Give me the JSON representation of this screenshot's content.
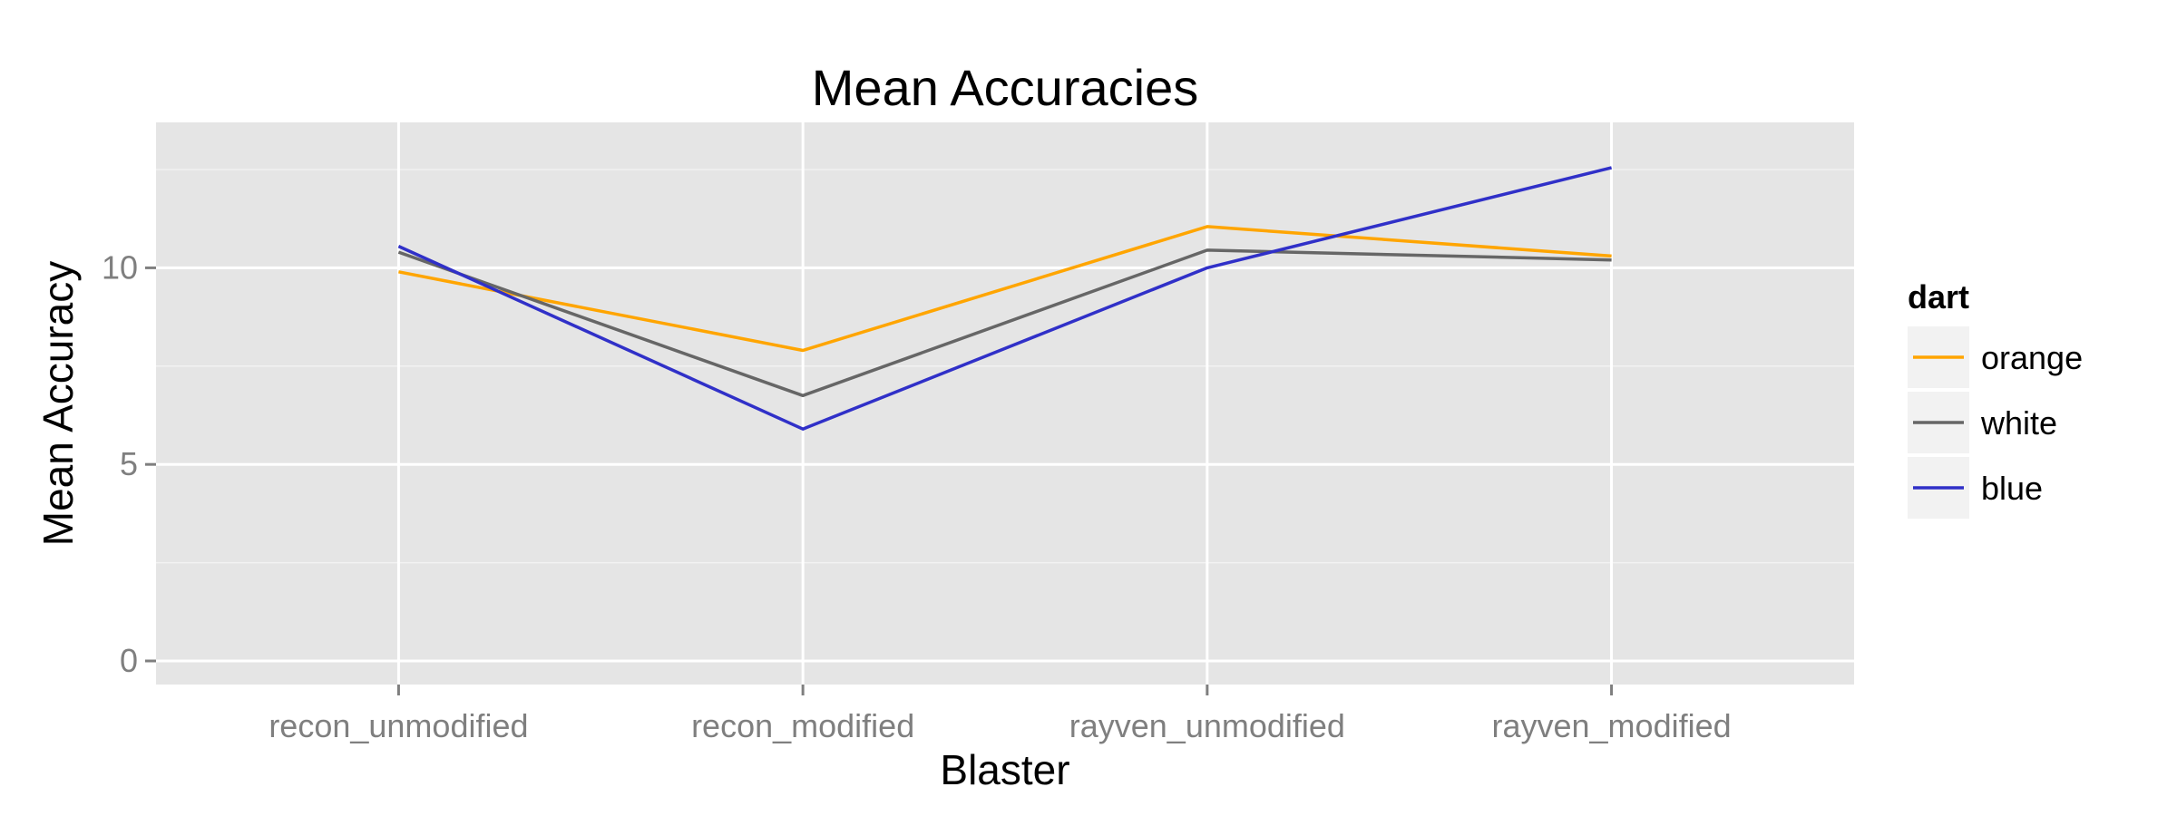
{
  "chart_data": {
    "type": "line",
    "title": "Mean Accuracies",
    "xlabel": "Blaster",
    "ylabel": "Mean Accuracy",
    "categories": [
      "recon_unmodified",
      "recon_modified",
      "rayven_unmodified",
      "rayven_modified"
    ],
    "ylim": [
      -0.6,
      13.7
    ],
    "yticks": [
      0,
      5,
      10
    ],
    "grid": true,
    "legend": {
      "title": "dart",
      "position": "right"
    },
    "series": [
      {
        "name": "orange",
        "color": "#ffa500",
        "values": [
          9.9,
          7.9,
          11.05,
          10.3
        ]
      },
      {
        "name": "white",
        "color": "#666666",
        "values": [
          10.4,
          6.75,
          10.45,
          10.2
        ]
      },
      {
        "name": "blue",
        "color": "#3030c8",
        "values": [
          10.55,
          5.9,
          10.0,
          12.55
        ]
      }
    ]
  }
}
